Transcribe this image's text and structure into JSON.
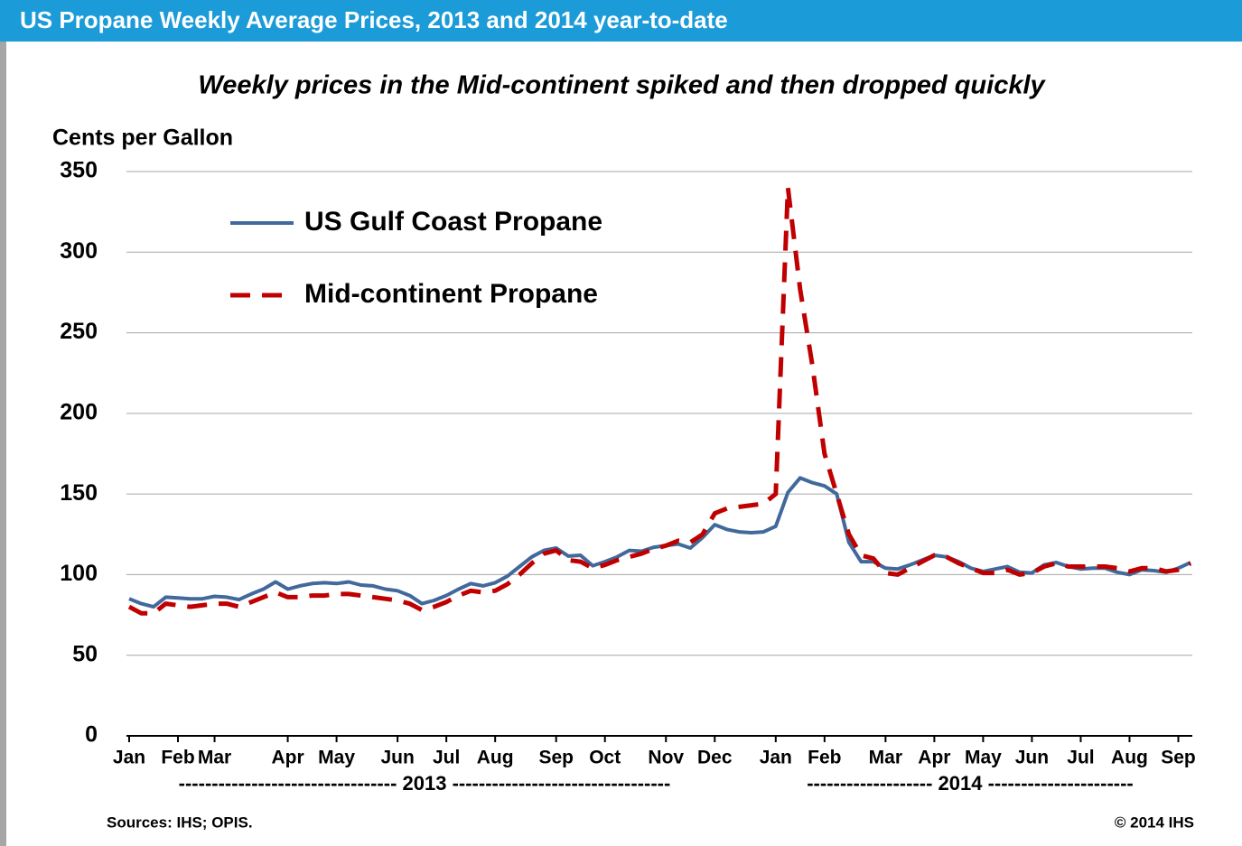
{
  "chart_data": {
    "type": "line",
    "header": "US Propane Weekly Average Prices, 2013 and 2014 year-to-date",
    "title": "Weekly prices in the Mid-continent spiked and then dropped quickly",
    "y_label": "Cents per Gallon",
    "year_labels": [
      "--------------------------------- 2013 ---------------------------------",
      "------------------- 2014 ----------------------"
    ],
    "source": "Sources: IHS; OPIS.",
    "copyright": "© 2014 IHS",
    "categories": [
      "Jan",
      null,
      null,
      null,
      "Feb",
      null,
      null,
      "Mar",
      null,
      null,
      null,
      null,
      null,
      "Apr",
      null,
      null,
      null,
      "May",
      null,
      null,
      null,
      null,
      "Jun",
      null,
      null,
      null,
      "Jul",
      null,
      null,
      null,
      "Aug",
      null,
      null,
      null,
      null,
      "Sep",
      null,
      null,
      null,
      "Oct",
      null,
      null,
      null,
      null,
      "Nov",
      null,
      null,
      null,
      "Dec",
      null,
      null,
      null,
      null,
      "Jan",
      null,
      null,
      null,
      "Feb",
      null,
      null,
      null,
      null,
      "Mar",
      null,
      null,
      null,
      "Apr",
      null,
      null,
      null,
      "May",
      null,
      null,
      null,
      "Jun",
      null,
      null,
      null,
      "Jul",
      null,
      null,
      null,
      "Aug",
      null,
      null,
      null,
      "Sep",
      null
    ],
    "series": [
      {
        "name": "US Gulf Coast Propane",
        "color": "#41699b",
        "dash": false,
        "values": [
          85,
          82,
          80,
          86,
          85.5,
          85,
          85,
          86.5,
          86,
          84.5,
          88,
          91,
          95.5,
          91,
          93,
          94.5,
          95,
          94.5,
          95.5,
          93.5,
          93,
          91,
          90,
          87,
          82,
          84,
          87,
          91,
          94.5,
          93,
          95,
          99,
          105,
          111,
          115,
          116.5,
          111.5,
          112,
          105.5,
          108,
          111,
          115,
          114.5,
          117,
          118,
          119,
          116.5,
          123,
          131,
          128,
          126.5,
          126,
          126.5,
          130,
          151,
          160,
          157,
          155,
          150,
          120,
          108,
          108,
          104,
          103.5,
          106,
          109,
          112,
          111,
          108,
          104,
          102,
          103.5,
          105,
          101.5,
          101,
          106,
          107.5,
          105,
          103.5,
          104,
          104,
          101.5,
          100,
          103,
          102.5,
          101.5,
          104,
          107.5
        ]
      },
      {
        "name": "Mid-continent Propane",
        "color": "#c00000",
        "dash": true,
        "values": [
          80,
          76,
          76,
          82,
          81,
          80,
          81,
          82,
          82,
          80,
          83,
          86,
          89,
          86,
          86,
          87,
          87,
          88,
          88,
          87,
          86,
          85,
          84,
          82,
          78,
          80,
          83,
          87,
          90,
          89,
          90,
          94,
          100,
          107,
          113,
          115,
          109,
          108,
          104,
          106,
          109,
          111,
          113,
          116,
          118,
          121,
          120,
          125,
          138,
          141,
          142,
          143,
          144,
          150,
          340,
          277,
          230,
          175,
          150,
          125,
          112,
          110,
          101,
          100,
          104,
          108,
          112,
          111,
          107,
          104,
          101,
          101,
          103,
          100,
          101,
          105,
          107,
          105,
          105,
          105,
          105,
          104,
          102,
          104,
          104,
          102,
          103,
          107
        ]
      }
    ],
    "ylim": [
      0,
      350
    ],
    "yticks": [
      0,
      50,
      100,
      150,
      200,
      250,
      300,
      350
    ],
    "grid": true
  }
}
